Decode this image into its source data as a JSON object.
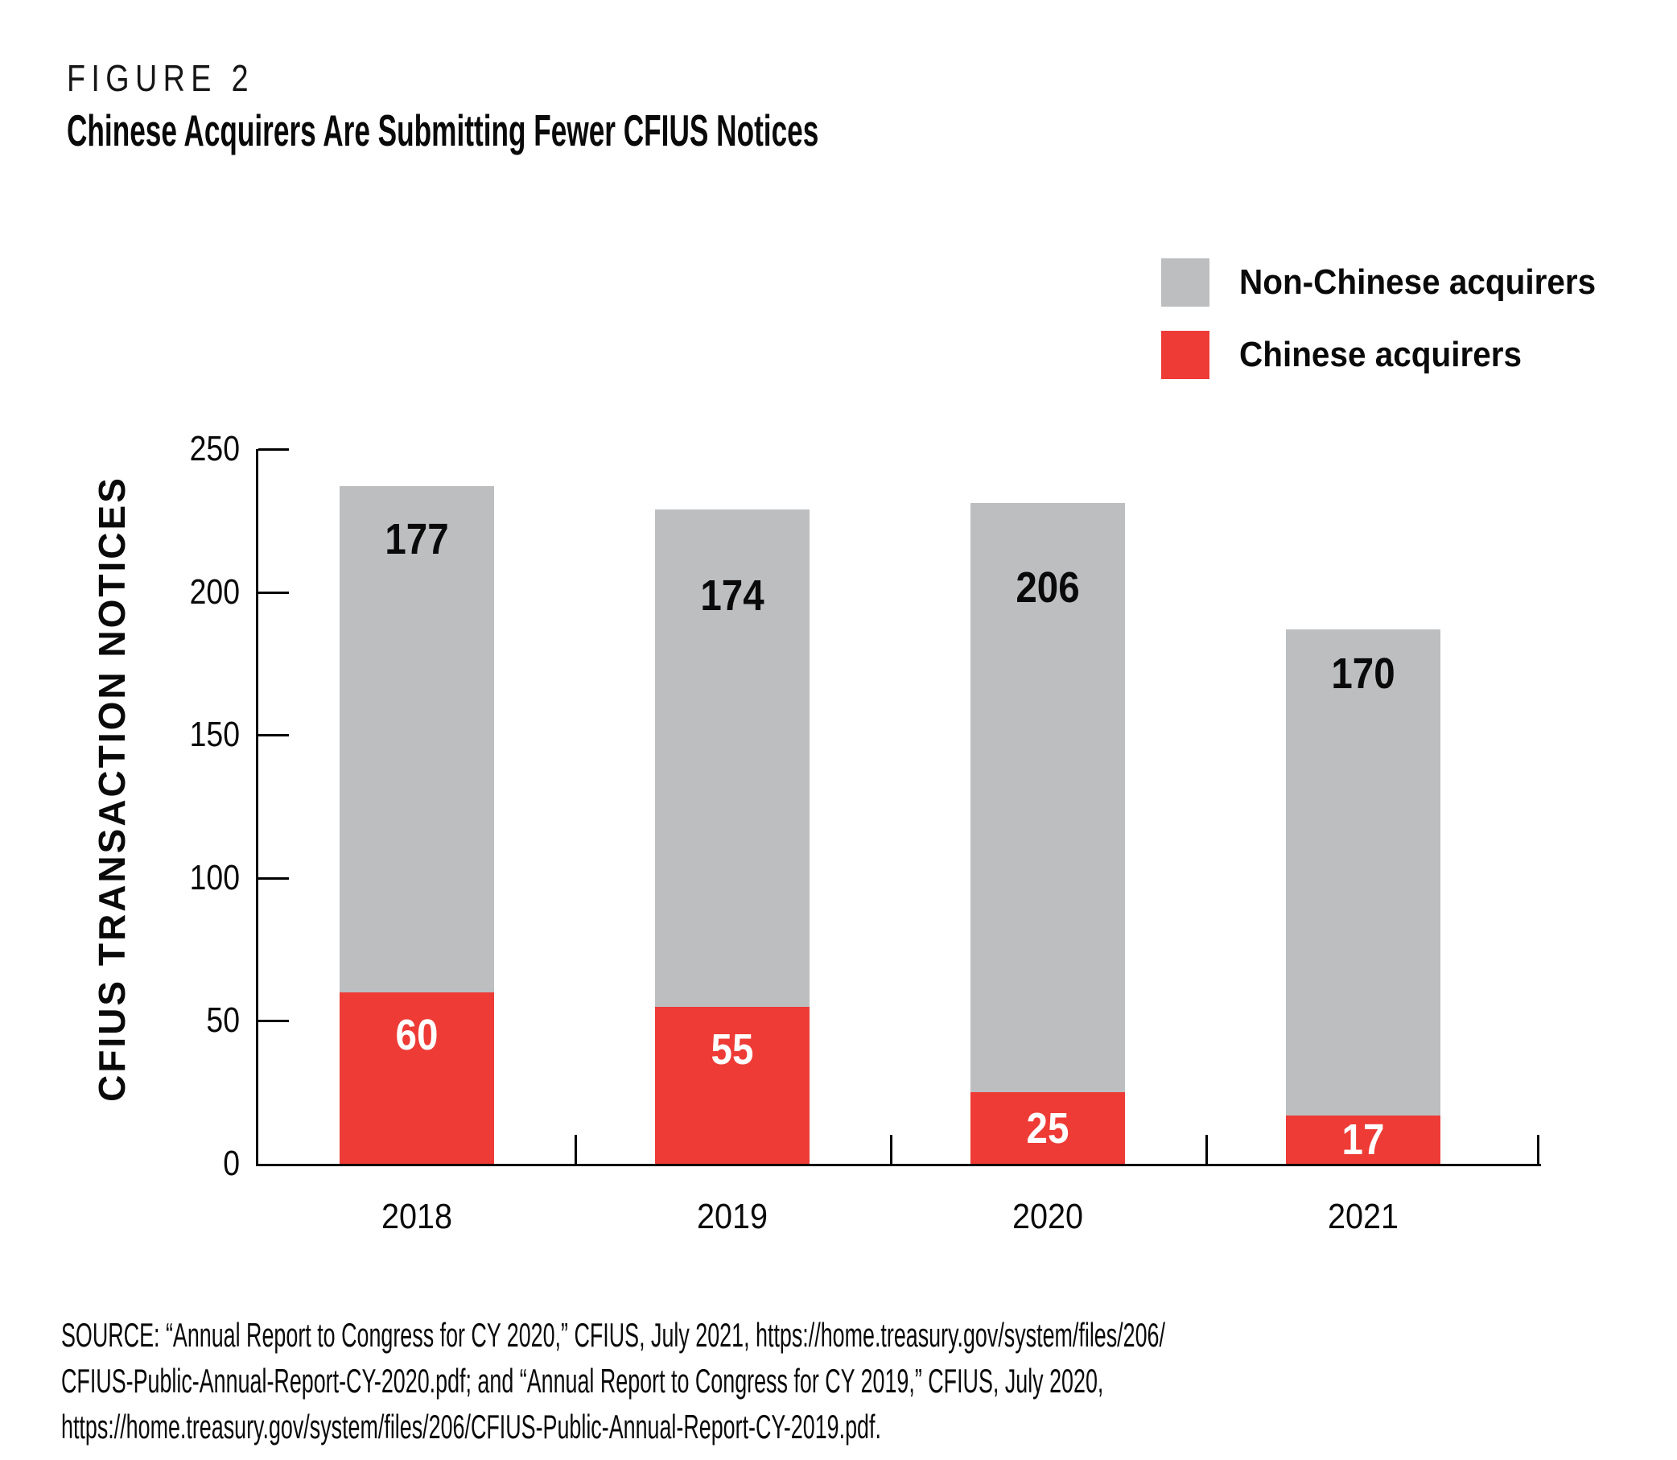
{
  "header": {
    "figure_label": "FIGURE 2",
    "title": "Chinese Acquirers Are Submitting Fewer CFIUS Notices"
  },
  "legend": {
    "items": [
      {
        "label": "Non-Chinese acquirers",
        "color": "#BCBEC0"
      },
      {
        "label": "Chinese acquirers",
        "color": "#EE3B36"
      }
    ]
  },
  "chart_data": {
    "type": "bar",
    "stacked": true,
    "title": "Chinese Acquirers Are Submitting Fewer CFIUS Notices",
    "categories": [
      "2018",
      "2019",
      "2020",
      "2021"
    ],
    "series": [
      {
        "name": "Chinese acquirers",
        "color": "#EE3B36",
        "label_color": "#FFFFFF",
        "values": [
          60,
          55,
          25,
          17
        ]
      },
      {
        "name": "Non-Chinese acquirers",
        "color": "#BCBEC0",
        "label_color": "#0A0A0A",
        "values": [
          177,
          174,
          206,
          170
        ]
      }
    ],
    "stack_order_bottom_to_top": [
      "Chinese acquirers",
      "Non-Chinese acquirers"
    ],
    "xlabel": "",
    "ylabel": "CFIUS TRANSACTION NOTICES",
    "ylim": [
      0,
      250
    ],
    "yticks": [
      0,
      50,
      100,
      150,
      200,
      250
    ],
    "grid": false,
    "legend_position": "top-right",
    "axis_color": "#000000"
  },
  "source": {
    "lines": [
      "SOURCE: “Annual Report to Congress for CY 2020,” CFIUS, July 2021, https://home.treasury.gov/system/files/206/",
      "CFIUS-Public-Annual-Report-CY-2020.pdf; and “Annual Report to Congress for CY 2019,” CFIUS, July 2020,",
      "https://home.treasury.gov/system/files/206/CFIUS-Public-Annual-Report-CY-2019.pdf."
    ]
  }
}
